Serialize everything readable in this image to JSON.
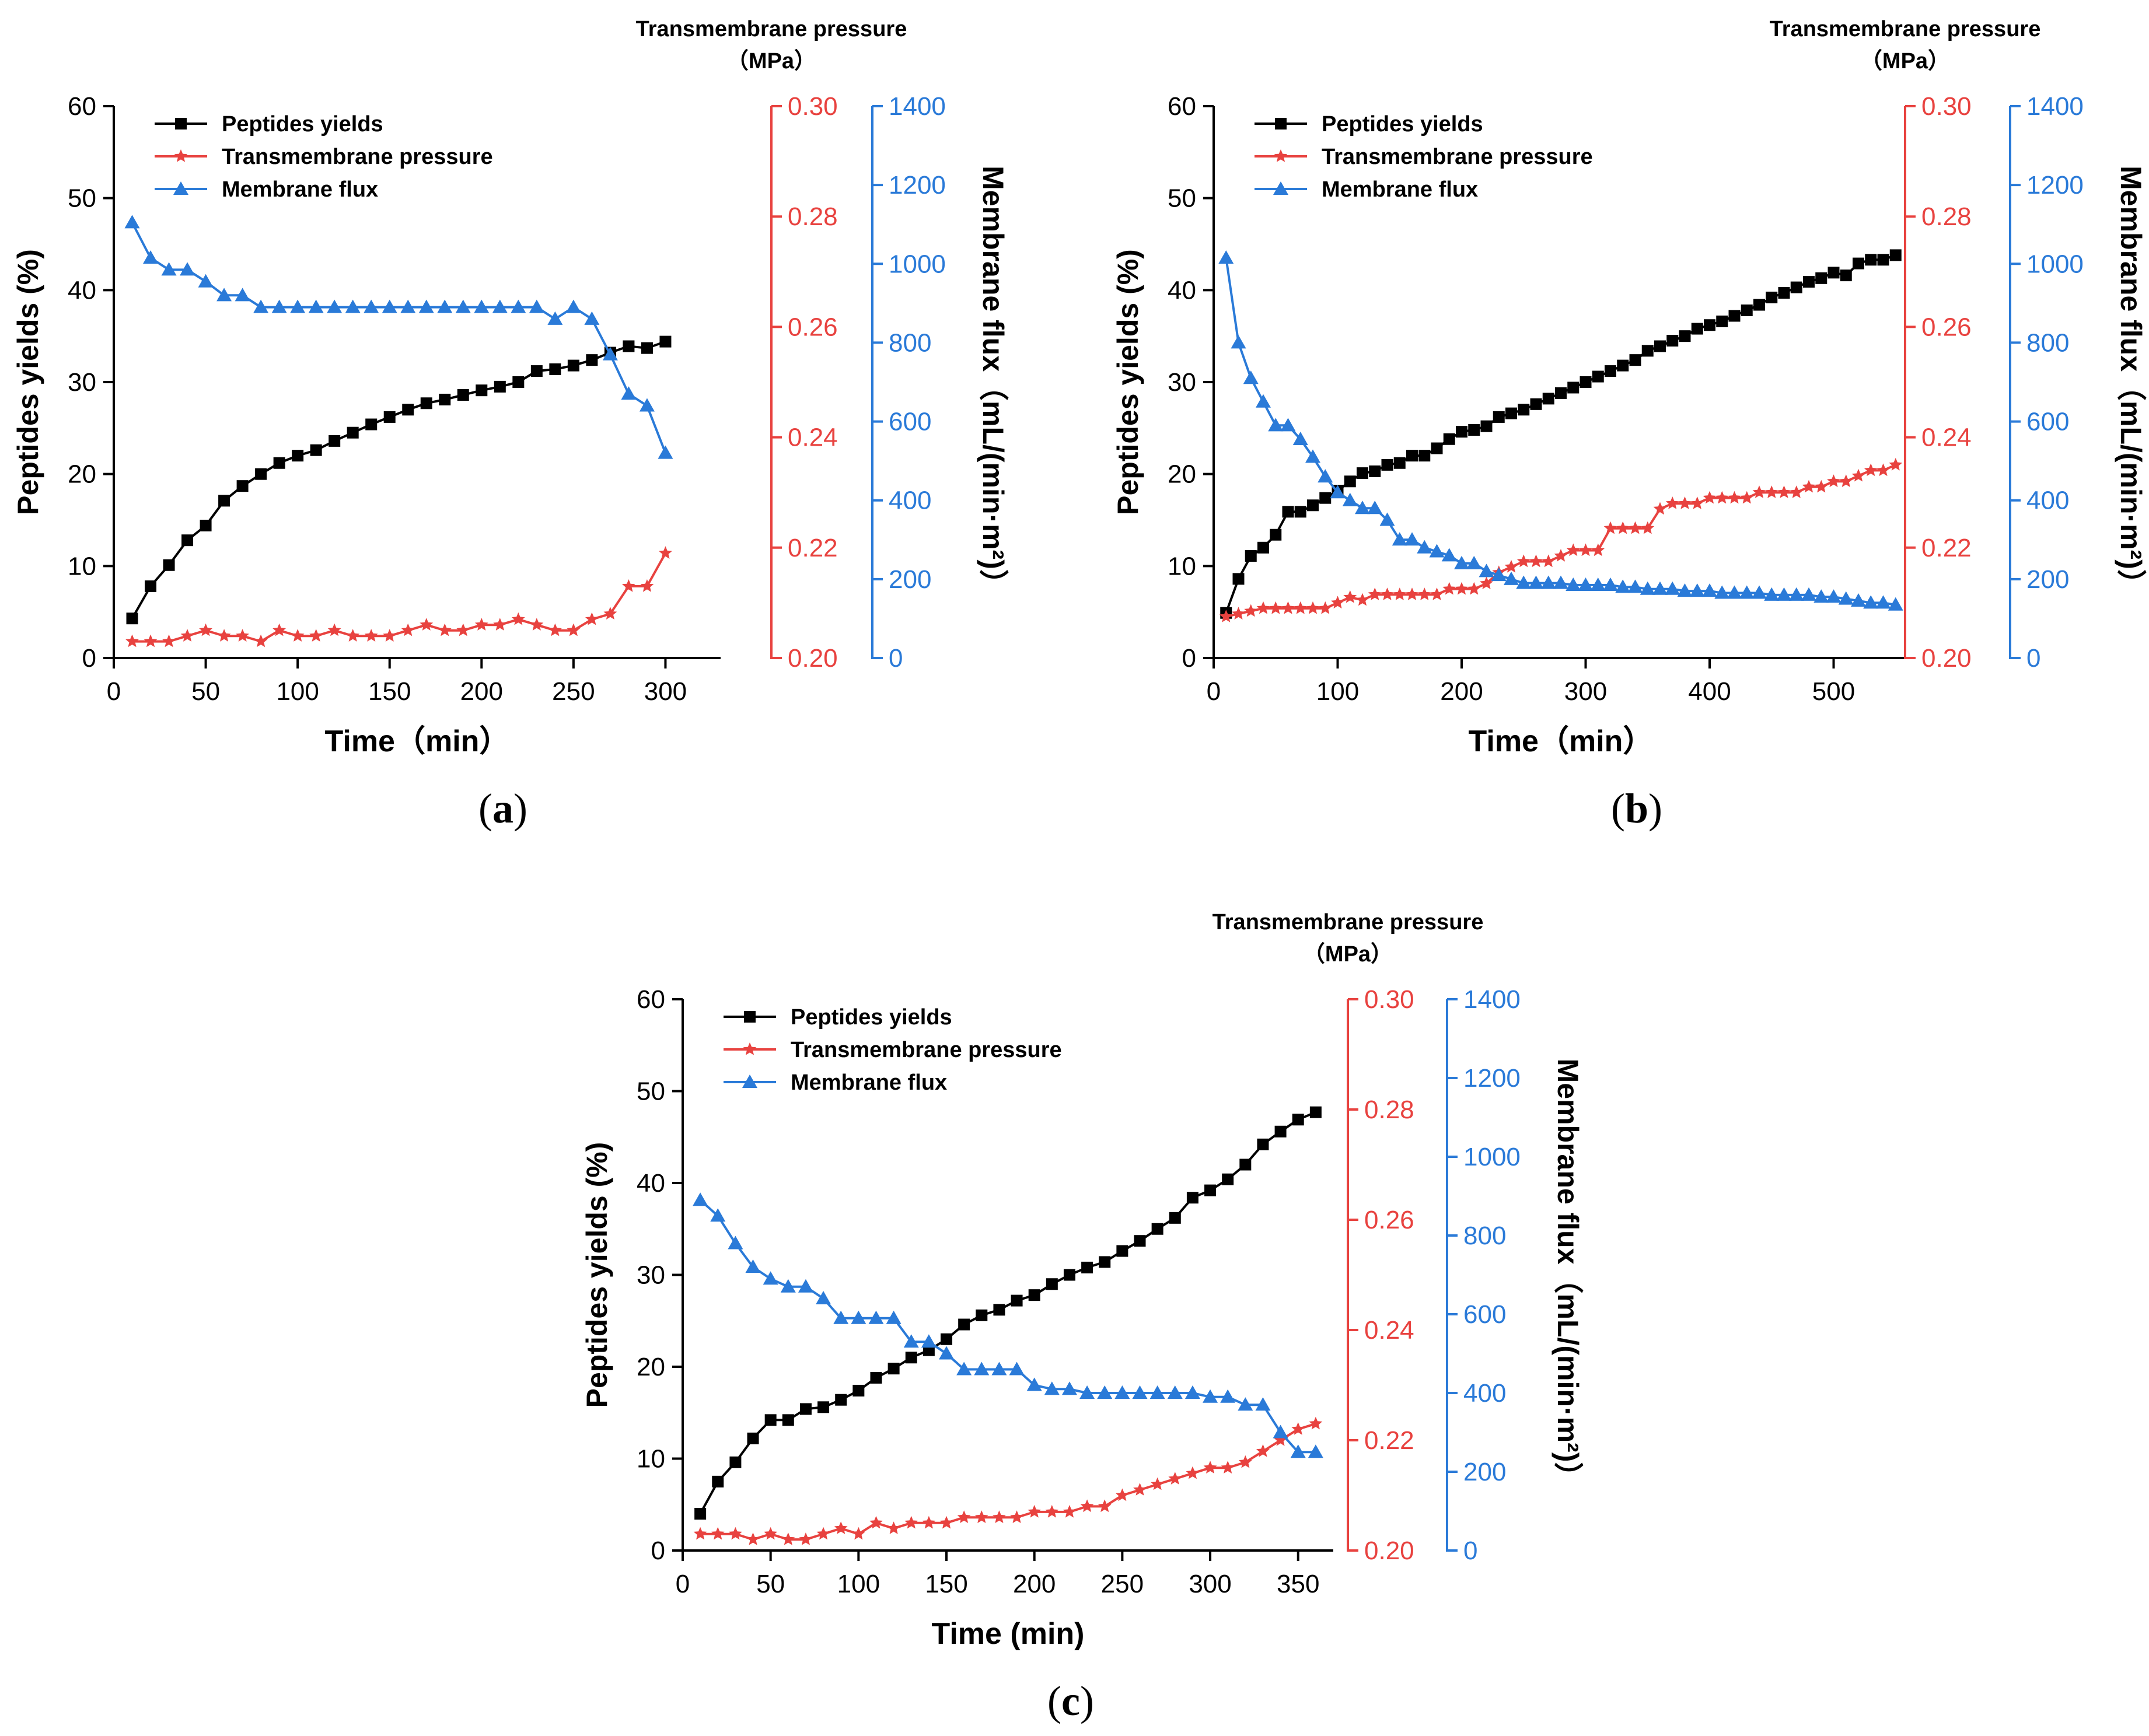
{
  "colors": {
    "yield": "#000000",
    "pressure": "#e8423f",
    "flux": "#2a7ad8"
  },
  "chart_data": [
    {
      "type": "line",
      "panel_label": "a",
      "xlabel": "Time（min）",
      "ylabel_left": "Peptides yields (%)",
      "ylabel_mid_title": "Transmembrane pressure",
      "ylabel_mid_unit": "（MPa）",
      "ylabel_right": "Membrane flux（mL/(min·m²)）",
      "xlim": [
        0,
        330
      ],
      "xticks": [
        0,
        50,
        100,
        150,
        200,
        250,
        300
      ],
      "xtick_labels": [
        "0",
        "50",
        "100",
        "150",
        "200",
        "250",
        "300"
      ],
      "ylim_left": [
        0,
        60
      ],
      "yticks_left": [
        0,
        10,
        20,
        30,
        40,
        50,
        60
      ],
      "ytick_labels_left": [
        "0",
        "10",
        "20",
        "30",
        "40",
        "50",
        "60"
      ],
      "ylim_mid": [
        0.2,
        0.3
      ],
      "yticks_mid": [
        0.2,
        0.22,
        0.24,
        0.26,
        0.28,
        0.3
      ],
      "ytick_labels_mid": [
        "0.20",
        "0.22",
        "0.24",
        "0.26",
        "0.28",
        "0.30"
      ],
      "ylim_right": [
        0,
        1400
      ],
      "yticks_right": [
        0,
        200,
        400,
        600,
        800,
        1000,
        1200,
        1400
      ],
      "ytick_labels_right": [
        "0",
        "200",
        "400",
        "600",
        "800",
        "1000",
        "1200",
        "1400"
      ],
      "legend": [
        "Peptides yields",
        "Transmembrane pressure",
        "Membrane flux"
      ],
      "series": [
        {
          "name": "Peptides yields",
          "axis": "left",
          "marker": "square",
          "x": [
            10,
            20,
            30,
            40,
            50,
            60,
            70,
            80,
            90,
            100,
            110,
            120,
            130,
            140,
            150,
            160,
            170,
            180,
            190,
            200,
            210,
            220,
            230,
            240,
            250,
            260,
            270,
            280,
            290,
            300
          ],
          "values": [
            4.3,
            7.8,
            10.1,
            12.8,
            14.4,
            17.1,
            18.7,
            20.0,
            21.2,
            22.0,
            22.6,
            23.6,
            24.5,
            25.4,
            26.2,
            27.0,
            27.7,
            28.1,
            28.6,
            29.1,
            29.5,
            30.0,
            31.2,
            31.4,
            31.8,
            32.4,
            33.2,
            33.9,
            33.7,
            34.4
          ]
        },
        {
          "name": "Transmembrane pressure",
          "axis": "mid",
          "marker": "star",
          "x": [
            10,
            20,
            30,
            40,
            50,
            60,
            70,
            80,
            90,
            100,
            110,
            120,
            130,
            140,
            150,
            160,
            170,
            180,
            190,
            200,
            210,
            220,
            230,
            240,
            250,
            260,
            270,
            280,
            290,
            300
          ],
          "values": [
            0.203,
            0.203,
            0.203,
            0.204,
            0.205,
            0.204,
            0.204,
            0.203,
            0.205,
            0.204,
            0.204,
            0.205,
            0.204,
            0.204,
            0.204,
            0.205,
            0.206,
            0.205,
            0.205,
            0.206,
            0.206,
            0.207,
            0.206,
            0.205,
            0.205,
            0.207,
            0.208,
            0.213,
            0.213,
            0.219
          ]
        },
        {
          "name": "Membrane flux",
          "axis": "right",
          "marker": "triangle",
          "x": [
            10,
            20,
            30,
            40,
            50,
            60,
            70,
            80,
            90,
            100,
            110,
            120,
            130,
            140,
            150,
            160,
            170,
            180,
            190,
            200,
            210,
            220,
            230,
            240,
            250,
            260,
            270,
            280,
            290,
            300
          ],
          "values": [
            1105,
            1015,
            985,
            985,
            955,
            920,
            920,
            890,
            890,
            890,
            890,
            890,
            890,
            890,
            890,
            890,
            890,
            890,
            890,
            890,
            890,
            890,
            890,
            860,
            890,
            860,
            770,
            670,
            640,
            520
          ]
        }
      ]
    },
    {
      "type": "line",
      "panel_label": "b",
      "xlabel": "Time（min）",
      "ylabel_left": "Peptides yields (%)",
      "ylabel_mid_title": "Transmembrane pressure",
      "ylabel_mid_unit": "（MPa）",
      "ylabel_right": "Membrane flux（mL/(min·m²)）",
      "xlim": [
        0,
        560
      ],
      "xticks": [
        0,
        100,
        200,
        300,
        400,
        500
      ],
      "xtick_labels": [
        "0",
        "100",
        "200",
        "300",
        "400",
        "500"
      ],
      "ylim_left": [
        0,
        60
      ],
      "yticks_left": [
        0,
        10,
        20,
        30,
        40,
        50,
        60
      ],
      "ytick_labels_left": [
        "0",
        "10",
        "20",
        "30",
        "40",
        "50",
        "60"
      ],
      "ylim_mid": [
        0.2,
        0.3
      ],
      "yticks_mid": [
        0.2,
        0.22,
        0.24,
        0.26,
        0.28,
        0.3
      ],
      "ytick_labels_mid": [
        "0.20",
        "0.22",
        "0.24",
        "0.26",
        "0.28",
        "0.30"
      ],
      "ylim_right": [
        0,
        1400
      ],
      "yticks_right": [
        0,
        200,
        400,
        600,
        800,
        1000,
        1200,
        1400
      ],
      "ytick_labels_right": [
        "0",
        "200",
        "400",
        "600",
        "800",
        "1000",
        "1200",
        "1400"
      ],
      "legend": [
        "Peptides yields",
        "Transmembrane pressure",
        "Membrane flux"
      ],
      "series": [
        {
          "name": "Peptides yields",
          "axis": "left",
          "marker": "square",
          "x": [
            10,
            20,
            30,
            40,
            50,
            60,
            70,
            80,
            90,
            100,
            110,
            120,
            130,
            140,
            150,
            160,
            170,
            180,
            190,
            200,
            210,
            220,
            230,
            240,
            250,
            260,
            270,
            280,
            290,
            300,
            310,
            320,
            330,
            340,
            350,
            360,
            370,
            380,
            390,
            400,
            410,
            420,
            430,
            440,
            450,
            460,
            470,
            480,
            490,
            500,
            510,
            520,
            530,
            540,
            550
          ],
          "values": [
            4.9,
            8.6,
            11.1,
            12.0,
            13.4,
            15.9,
            15.9,
            16.6,
            17.4,
            18.2,
            19.2,
            20.1,
            20.3,
            21.0,
            21.2,
            22.0,
            22.0,
            22.8,
            23.8,
            24.6,
            24.8,
            25.2,
            26.2,
            26.6,
            27.0,
            27.6,
            28.2,
            28.8,
            29.4,
            30.0,
            30.6,
            31.2,
            31.8,
            32.4,
            33.4,
            33.9,
            34.5,
            35.0,
            35.8,
            36.2,
            36.6,
            37.2,
            37.8,
            38.4,
            39.2,
            39.7,
            40.3,
            40.9,
            41.3,
            41.9,
            41.6,
            42.9,
            43.3,
            43.3,
            43.8
          ]
        },
        {
          "name": "Transmembrane pressure",
          "axis": "mid",
          "marker": "star",
          "x": [
            10,
            20,
            30,
            40,
            50,
            60,
            70,
            80,
            90,
            100,
            110,
            120,
            130,
            140,
            150,
            160,
            170,
            180,
            190,
            200,
            210,
            220,
            230,
            240,
            250,
            260,
            270,
            280,
            290,
            300,
            310,
            320,
            330,
            340,
            350,
            360,
            370,
            380,
            390,
            400,
            410,
            420,
            430,
            440,
            450,
            460,
            470,
            480,
            490,
            500,
            510,
            520,
            530,
            540,
            550
          ],
          "values": [
            0.2075,
            0.208,
            0.2085,
            0.209,
            0.209,
            0.209,
            0.209,
            0.209,
            0.209,
            0.21,
            0.211,
            0.2105,
            0.2115,
            0.2115,
            0.2115,
            0.2115,
            0.2115,
            0.2115,
            0.2125,
            0.2125,
            0.2125,
            0.2135,
            0.2155,
            0.2165,
            0.2175,
            0.2175,
            0.2175,
            0.2185,
            0.2195,
            0.2195,
            0.2195,
            0.2235,
            0.2235,
            0.2235,
            0.2235,
            0.227,
            0.228,
            0.228,
            0.228,
            0.229,
            0.229,
            0.229,
            0.229,
            0.23,
            0.23,
            0.23,
            0.23,
            0.231,
            0.231,
            0.232,
            0.232,
            0.233,
            0.234,
            0.234,
            0.235
          ]
        },
        {
          "name": "Membrane flux",
          "axis": "right",
          "marker": "triangle",
          "x": [
            10,
            20,
            30,
            40,
            50,
            60,
            70,
            80,
            90,
            100,
            110,
            120,
            130,
            140,
            150,
            160,
            170,
            180,
            190,
            200,
            210,
            220,
            230,
            240,
            250,
            260,
            270,
            280,
            290,
            300,
            310,
            320,
            330,
            340,
            350,
            360,
            370,
            380,
            390,
            400,
            410,
            420,
            430,
            440,
            450,
            460,
            470,
            480,
            490,
            500,
            510,
            520,
            530,
            540,
            550
          ],
          "values": [
            1015,
            800,
            710,
            650,
            590,
            590,
            555,
            510,
            460,
            420,
            400,
            380,
            380,
            350,
            300,
            300,
            280,
            270,
            260,
            240,
            240,
            220,
            210,
            200,
            190,
            190,
            190,
            190,
            185,
            185,
            185,
            185,
            180,
            180,
            175,
            175,
            175,
            170,
            170,
            170,
            165,
            165,
            165,
            165,
            160,
            160,
            160,
            160,
            155,
            155,
            150,
            145,
            140,
            140,
            135
          ]
        }
      ]
    },
    {
      "type": "line",
      "panel_label": "c",
      "xlabel": "Time (min)",
      "ylabel_left": "Peptides yields (%)",
      "ylabel_mid_title": "Transmembrane pressure",
      "ylabel_mid_unit": "（MPa）",
      "ylabel_right": "Membrane flux（mL/(min·m²)）",
      "xlim": [
        0,
        370
      ],
      "xticks": [
        0,
        50,
        100,
        150,
        200,
        250,
        300,
        350
      ],
      "xtick_labels": [
        "0",
        "50",
        "100",
        "150",
        "200",
        "250",
        "300",
        "350"
      ],
      "ylim_left": [
        0,
        60
      ],
      "yticks_left": [
        0,
        10,
        20,
        30,
        40,
        50,
        60
      ],
      "ytick_labels_left": [
        "0",
        "10",
        "20",
        "30",
        "40",
        "50",
        "60"
      ],
      "ylim_mid": [
        0.2,
        0.3
      ],
      "yticks_mid": [
        0.2,
        0.22,
        0.24,
        0.26,
        0.28,
        0.3
      ],
      "ytick_labels_mid": [
        "0.20",
        "0.22",
        "0.24",
        "0.26",
        "0.28",
        "0.30"
      ],
      "ylim_right": [
        0,
        1400
      ],
      "yticks_right": [
        0,
        200,
        400,
        600,
        800,
        1000,
        1200,
        1400
      ],
      "ytick_labels_right": [
        "0",
        "200",
        "400",
        "600",
        "800",
        "1000",
        "1200",
        "1400"
      ],
      "legend": [
        "Peptides yields",
        "Transmembrane pressure",
        "Membrane flux"
      ],
      "series": [
        {
          "name": "Peptides yields",
          "axis": "left",
          "marker": "square",
          "x": [
            10,
            20,
            30,
            40,
            50,
            60,
            70,
            80,
            90,
            100,
            110,
            120,
            130,
            140,
            150,
            160,
            170,
            180,
            190,
            200,
            210,
            220,
            230,
            240,
            250,
            260,
            270,
            280,
            290,
            300,
            310,
            320,
            330,
            340,
            350,
            360
          ],
          "values": [
            4.0,
            7.5,
            9.6,
            12.2,
            14.2,
            14.2,
            15.4,
            15.6,
            16.4,
            17.4,
            18.8,
            19.8,
            21.0,
            21.8,
            23.0,
            24.6,
            25.6,
            26.2,
            27.2,
            27.8,
            29.0,
            30.0,
            30.8,
            31.4,
            32.6,
            33.7,
            35.0,
            36.2,
            38.4,
            39.2,
            40.4,
            42.0,
            44.2,
            45.6,
            46.9,
            47.7
          ]
        },
        {
          "name": "Transmembrane pressure",
          "axis": "mid",
          "marker": "star",
          "x": [
            10,
            20,
            30,
            40,
            50,
            60,
            70,
            80,
            90,
            100,
            110,
            120,
            130,
            140,
            150,
            160,
            170,
            180,
            190,
            200,
            210,
            220,
            230,
            240,
            250,
            260,
            270,
            280,
            290,
            300,
            310,
            320,
            330,
            340,
            350,
            360
          ],
          "values": [
            0.203,
            0.203,
            0.203,
            0.202,
            0.203,
            0.202,
            0.202,
            0.203,
            0.204,
            0.203,
            0.205,
            0.204,
            0.205,
            0.205,
            0.205,
            0.206,
            0.206,
            0.206,
            0.206,
            0.207,
            0.207,
            0.207,
            0.208,
            0.208,
            0.21,
            0.211,
            0.212,
            0.213,
            0.214,
            0.215,
            0.215,
            0.216,
            0.218,
            0.22,
            0.222,
            0.223
          ]
        },
        {
          "name": "Membrane flux",
          "axis": "right",
          "marker": "triangle",
          "x": [
            10,
            20,
            30,
            40,
            50,
            60,
            70,
            80,
            90,
            100,
            110,
            120,
            130,
            140,
            150,
            160,
            170,
            180,
            190,
            200,
            210,
            220,
            230,
            240,
            250,
            260,
            270,
            280,
            290,
            300,
            310,
            320,
            330,
            340,
            350,
            360
          ],
          "values": [
            890,
            850,
            780,
            720,
            690,
            670,
            670,
            640,
            590,
            590,
            590,
            590,
            530,
            530,
            500,
            460,
            460,
            460,
            460,
            420,
            410,
            410,
            400,
            400,
            400,
            400,
            400,
            400,
            400,
            390,
            390,
            370,
            370,
            300,
            250,
            250
          ]
        }
      ]
    }
  ]
}
